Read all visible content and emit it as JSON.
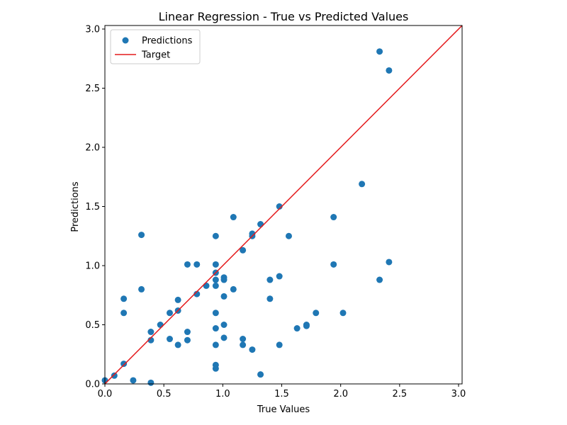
{
  "chart_data": {
    "type": "scatter",
    "title": "Linear Regression - True vs Predicted Values",
    "xlabel": "True Values",
    "ylabel": "Predictions",
    "xlim": [
      0.0,
      3.03
    ],
    "ylim": [
      0.0,
      3.03
    ],
    "xticks": [
      "0.0",
      "0.5",
      "1.0",
      "1.5",
      "2.0",
      "2.5",
      "3.0"
    ],
    "yticks": [
      "0.0",
      "0.5",
      "1.0",
      "1.5",
      "2.0",
      "2.5",
      "3.0"
    ],
    "grid": false,
    "legend": {
      "position": "top-left",
      "entries": [
        {
          "label": "Predictions",
          "kind": "marker",
          "color": "#1f77b4"
        },
        {
          "label": "Target",
          "kind": "line",
          "color": "#e41a1c"
        }
      ]
    },
    "series": [
      {
        "name": "Predictions",
        "kind": "scatter",
        "color": "#1f77b4",
        "points": [
          [
            0.0,
            0.03
          ],
          [
            0.08,
            0.07
          ],
          [
            0.16,
            0.17
          ],
          [
            0.24,
            0.03
          ],
          [
            0.39,
            0.01
          ],
          [
            0.16,
            0.72
          ],
          [
            0.16,
            0.6
          ],
          [
            0.31,
            1.26
          ],
          [
            0.31,
            0.8
          ],
          [
            0.39,
            0.44
          ],
          [
            0.39,
            0.37
          ],
          [
            0.47,
            0.5
          ],
          [
            0.55,
            0.6
          ],
          [
            0.55,
            0.38
          ],
          [
            0.62,
            0.71
          ],
          [
            0.62,
            0.62
          ],
          [
            0.62,
            0.33
          ],
          [
            0.7,
            1.01
          ],
          [
            0.7,
            0.44
          ],
          [
            0.7,
            0.37
          ],
          [
            0.78,
            1.01
          ],
          [
            0.78,
            0.76
          ],
          [
            0.86,
            0.83
          ],
          [
            0.94,
            1.25
          ],
          [
            0.94,
            1.01
          ],
          [
            0.94,
            0.94
          ],
          [
            0.94,
            0.88
          ],
          [
            0.94,
            0.83
          ],
          [
            0.94,
            0.6
          ],
          [
            0.94,
            0.47
          ],
          [
            0.94,
            0.33
          ],
          [
            0.94,
            0.16
          ],
          [
            0.94,
            0.13
          ],
          [
            1.01,
            0.9
          ],
          [
            1.01,
            0.88
          ],
          [
            1.01,
            0.74
          ],
          [
            1.01,
            0.5
          ],
          [
            1.01,
            0.39
          ],
          [
            1.09,
            1.41
          ],
          [
            1.09,
            0.8
          ],
          [
            1.17,
            1.13
          ],
          [
            1.17,
            0.38
          ],
          [
            1.17,
            0.33
          ],
          [
            1.25,
            1.27
          ],
          [
            1.25,
            1.25
          ],
          [
            1.25,
            0.29
          ],
          [
            1.32,
            1.35
          ],
          [
            1.32,
            0.08
          ],
          [
            1.4,
            0.88
          ],
          [
            1.4,
            0.72
          ],
          [
            1.48,
            1.5
          ],
          [
            1.48,
            0.91
          ],
          [
            1.48,
            0.33
          ],
          [
            1.56,
            1.25
          ],
          [
            1.63,
            0.47
          ],
          [
            1.71,
            0.5
          ],
          [
            1.71,
            0.49
          ],
          [
            1.79,
            0.6
          ],
          [
            1.94,
            1.41
          ],
          [
            1.94,
            1.01
          ],
          [
            2.02,
            0.6
          ],
          [
            2.18,
            1.69
          ],
          [
            2.33,
            2.81
          ],
          [
            2.33,
            0.88
          ],
          [
            2.41,
            2.65
          ],
          [
            2.41,
            1.03
          ]
        ]
      },
      {
        "name": "Target",
        "kind": "line",
        "color": "#e41a1c",
        "points": [
          [
            0.0,
            0.0
          ],
          [
            3.03,
            3.03
          ]
        ]
      }
    ]
  }
}
